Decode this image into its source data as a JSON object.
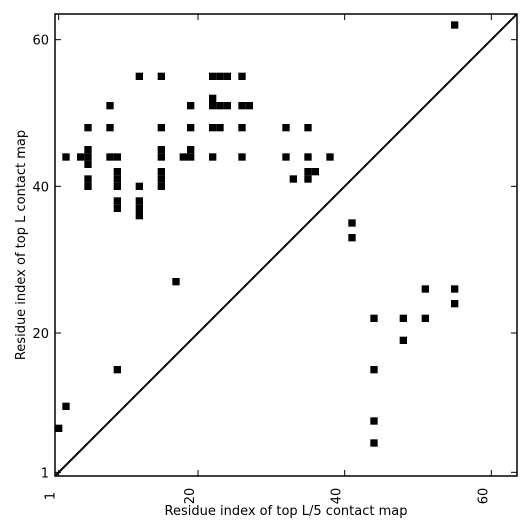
{
  "chart_data": {
    "type": "scatter",
    "title": "",
    "xlabel": "Residue index of top L/5 contact map",
    "ylabel": "Residue index of top L contact map",
    "xlim": [
      0.5,
      63.5
    ],
    "ylim": [
      0.5,
      63.5
    ],
    "xticks": [
      1,
      20,
      40,
      60
    ],
    "yticks": [
      1,
      20,
      40,
      60
    ],
    "xtick_labels": [
      "1",
      "20",
      "40",
      "60"
    ],
    "ytick_labels": [
      "1",
      "20",
      "40",
      "60"
    ],
    "xtick_rotation_deg": -90,
    "grid": false,
    "legend": "none",
    "marker": "filled square",
    "marker_color": "#000000",
    "diagonal": {
      "from": [
        0.5,
        0.5
      ],
      "to": [
        63.5,
        63.5
      ],
      "color": "#000000"
    },
    "upper_triangle_points": [
      [
        2,
        44
      ],
      [
        5,
        48
      ],
      [
        5,
        45
      ],
      [
        5,
        44
      ],
      [
        5,
        43
      ],
      [
        5,
        41
      ],
      [
        5,
        40
      ],
      [
        4,
        44
      ],
      [
        8,
        51
      ],
      [
        8,
        48
      ],
      [
        8,
        44
      ],
      [
        9,
        44
      ],
      [
        9,
        42
      ],
      [
        9,
        41
      ],
      [
        9,
        40
      ],
      [
        9,
        38
      ],
      [
        9,
        37
      ],
      [
        12,
        55
      ],
      [
        12,
        40
      ],
      [
        12,
        38
      ],
      [
        12,
        37
      ],
      [
        12,
        36
      ],
      [
        15,
        55
      ],
      [
        15,
        48
      ],
      [
        15,
        45
      ],
      [
        15,
        44
      ],
      [
        15,
        42
      ],
      [
        15,
        41
      ],
      [
        15,
        40
      ],
      [
        17,
        27
      ],
      [
        18,
        44
      ],
      [
        19,
        51
      ],
      [
        19,
        48
      ],
      [
        19,
        45
      ],
      [
        19,
        44
      ],
      [
        22,
        55
      ],
      [
        22,
        52
      ],
      [
        22,
        51
      ],
      [
        22,
        48
      ],
      [
        22,
        44
      ],
      [
        23,
        55
      ],
      [
        23,
        51
      ],
      [
        23,
        48
      ],
      [
        24,
        55
      ],
      [
        24,
        51
      ],
      [
        26,
        55
      ],
      [
        26,
        51
      ],
      [
        26,
        48
      ],
      [
        26,
        44
      ],
      [
        27,
        51
      ],
      [
        32,
        48
      ],
      [
        32,
        44
      ],
      [
        33,
        41
      ],
      [
        35,
        48
      ],
      [
        35,
        44
      ],
      [
        35,
        42
      ],
      [
        35,
        41
      ],
      [
        36,
        42
      ],
      [
        38,
        44
      ],
      [
        41,
        35
      ],
      [
        41,
        33
      ],
      [
        55,
        62
      ]
    ],
    "lower_triangle_points": [
      [
        1,
        7
      ],
      [
        2,
        10
      ],
      [
        9,
        15
      ],
      [
        44,
        22
      ],
      [
        44,
        15
      ],
      [
        44,
        8
      ],
      [
        44,
        5
      ],
      [
        48,
        22
      ],
      [
        48,
        19
      ],
      [
        51,
        26
      ],
      [
        51,
        22
      ],
      [
        55,
        26
      ],
      [
        55,
        24
      ]
    ]
  }
}
